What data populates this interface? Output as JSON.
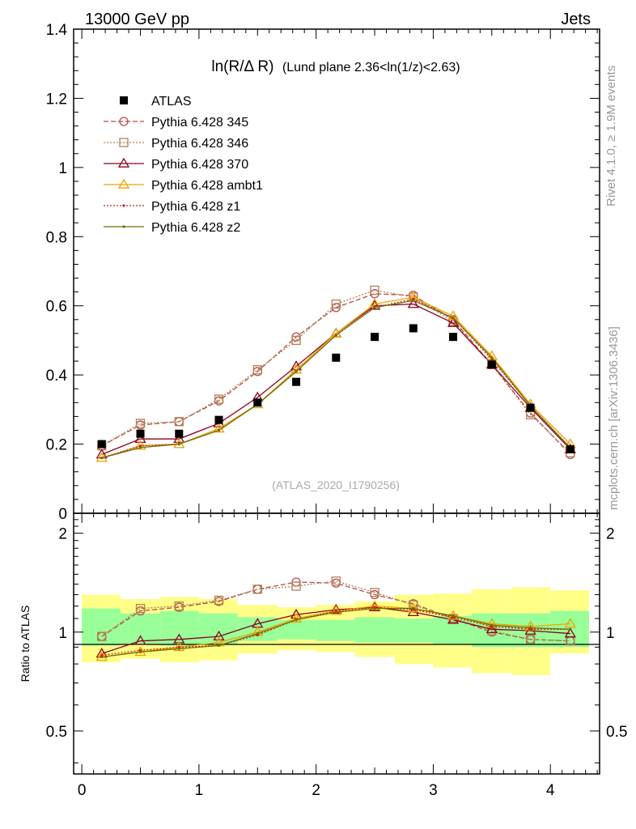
{
  "header": {
    "left": "13000 GeV pp",
    "right": "Jets"
  },
  "side_labels": {
    "rivet": "Rivet 4.1.0, ≥ 1.9M events",
    "mcplots": "mcplots.cern.ch [arXiv:1306.3436]"
  },
  "reference": "(ATLAS_2020_I1790256)",
  "chart_data": [
    {
      "type": "line",
      "title_main": "ln(R/Δ R)",
      "title_sub": "(Lund plane 2.36<ln(1/z)<2.63)",
      "xlim": [
        -0.07,
        4.42
      ],
      "ylim": [
        0,
        1.4
      ],
      "yticks": [
        0,
        0.2,
        0.4,
        0.6,
        0.8,
        1,
        1.2,
        1.4
      ],
      "ytick_labels": [
        "0",
        "0.2",
        "0.4",
        "0.6",
        "0.8",
        "1",
        "1.2",
        "1.4"
      ],
      "x": [
        0.17,
        0.5,
        0.83,
        1.17,
        1.5,
        1.83,
        2.17,
        2.5,
        2.83,
        3.17,
        3.5,
        3.83,
        4.17
      ],
      "data": {
        "name": "ATLAS",
        "color": "#000000",
        "values": [
          0.2,
          0.23,
          0.23,
          0.27,
          0.32,
          0.38,
          0.45,
          0.51,
          0.535,
          0.51,
          0.43,
          0.305,
          0.185
        ]
      },
      "series": [
        {
          "name": "Pythia 6.428 345",
          "color": "#b74b4b",
          "marker": "circle",
          "dash": "6,3",
          "values": [
            0.195,
            0.255,
            0.265,
            0.325,
            0.41,
            0.51,
            0.595,
            0.635,
            0.63,
            0.56,
            0.43,
            0.29,
            0.17
          ]
        },
        {
          "name": "Pythia 6.428 346",
          "color": "#b08250",
          "marker": "square",
          "dash": "2,2",
          "values": [
            0.195,
            0.26,
            0.265,
            0.33,
            0.415,
            0.5,
            0.605,
            0.645,
            0.625,
            0.555,
            0.43,
            0.285,
            0.175
          ]
        },
        {
          "name": "Pythia 6.428 370",
          "color": "#8b0020",
          "marker": "triangle",
          "dash": "",
          "values": [
            0.17,
            0.215,
            0.215,
            0.26,
            0.335,
            0.425,
            0.52,
            0.6,
            0.605,
            0.55,
            0.43,
            0.305,
            0.185
          ]
        },
        {
          "name": "Pythia 6.428 ambt1",
          "color": "#f0a000",
          "marker": "triangle",
          "dash": "",
          "values": [
            0.16,
            0.195,
            0.2,
            0.245,
            0.315,
            0.415,
            0.52,
            0.605,
            0.625,
            0.57,
            0.455,
            0.315,
            0.2
          ]
        },
        {
          "name": "Pythia 6.428 z1",
          "color": "#c82020",
          "marker": "dot",
          "dash": "2,2",
          "values": [
            0.16,
            0.195,
            0.2,
            0.24,
            0.315,
            0.41,
            0.515,
            0.595,
            0.62,
            0.565,
            0.445,
            0.31,
            0.19
          ]
        },
        {
          "name": "Pythia 6.428 z2",
          "color": "#707000",
          "marker": "dot",
          "dash": "",
          "values": [
            0.16,
            0.19,
            0.2,
            0.24,
            0.315,
            0.41,
            0.515,
            0.595,
            0.615,
            0.565,
            0.45,
            0.31,
            0.19
          ]
        }
      ]
    },
    {
      "type": "line",
      "ylabel": "Ratio to ATLAS",
      "xlim": [
        -0.07,
        4.42
      ],
      "ylim": [
        0.37,
        2.3
      ],
      "yticks": [
        0.5,
        1,
        2
      ],
      "ytick_labels": [
        "0.5",
        "1",
        "2"
      ],
      "xticks": [
        0,
        1,
        2,
        3,
        4
      ],
      "xtick_labels": [
        "0",
        "1",
        "2",
        "3",
        "4"
      ],
      "bins": [
        [
          0,
          0.33
        ],
        [
          0.33,
          0.67
        ],
        [
          0.67,
          1.0
        ],
        [
          1.0,
          1.33
        ],
        [
          1.33,
          1.67
        ],
        [
          1.67,
          2.0
        ],
        [
          2.0,
          2.33
        ],
        [
          2.33,
          2.67
        ],
        [
          2.67,
          3.0
        ],
        [
          3.0,
          3.33
        ],
        [
          3.33,
          3.67
        ],
        [
          3.67,
          4.0
        ],
        [
          4.0,
          4.33
        ]
      ],
      "band_inner": [
        [
          0.91,
          1.18
        ],
        [
          0.92,
          1.14
        ],
        [
          0.91,
          1.16
        ],
        [
          0.92,
          1.14
        ],
        [
          0.94,
          1.11
        ],
        [
          0.95,
          1.09
        ],
        [
          0.94,
          1.09
        ],
        [
          0.93,
          1.11
        ],
        [
          0.93,
          1.1
        ],
        [
          0.92,
          1.12
        ],
        [
          0.9,
          1.14
        ],
        [
          0.9,
          1.14
        ],
        [
          0.9,
          1.16
        ]
      ],
      "band_outer": [
        [
          0.81,
          1.3
        ],
        [
          0.83,
          1.26
        ],
        [
          0.81,
          1.28
        ],
        [
          0.82,
          1.26
        ],
        [
          0.86,
          1.21
        ],
        [
          0.88,
          1.19
        ],
        [
          0.87,
          1.21
        ],
        [
          0.84,
          1.24
        ],
        [
          0.8,
          1.3
        ],
        [
          0.78,
          1.31
        ],
        [
          0.75,
          1.35
        ],
        [
          0.74,
          1.37
        ],
        [
          0.86,
          1.34
        ]
      ],
      "series_ratio": [
        [
          0.97,
          1.16,
          1.19,
          1.24,
          1.35,
          1.42,
          1.41,
          1.3,
          1.22,
          1.1,
          1.0,
          0.95,
          0.94
        ],
        [
          0.97,
          1.18,
          1.2,
          1.25,
          1.35,
          1.38,
          1.43,
          1.32,
          1.21,
          1.1,
          1.01,
          0.95,
          0.94
        ],
        [
          0.86,
          0.94,
          0.95,
          0.97,
          1.06,
          1.13,
          1.17,
          1.19,
          1.15,
          1.09,
          1.02,
          1.01,
          0.99
        ],
        [
          0.84,
          0.87,
          0.9,
          0.93,
          1.0,
          1.1,
          1.16,
          1.2,
          1.18,
          1.12,
          1.06,
          1.04,
          1.06
        ],
        [
          0.85,
          0.88,
          0.9,
          0.91,
          0.98,
          1.09,
          1.16,
          1.19,
          1.17,
          1.11,
          1.04,
          1.02,
          1.02
        ],
        [
          0.84,
          0.87,
          0.89,
          0.91,
          0.99,
          1.09,
          1.15,
          1.18,
          1.18,
          1.12,
          1.05,
          1.03,
          1.02
        ]
      ]
    }
  ]
}
